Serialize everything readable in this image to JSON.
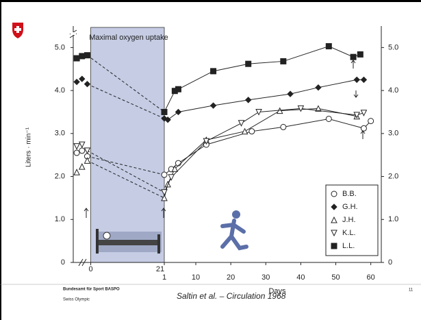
{
  "chart_data": {
    "type": "line",
    "shaded_label": "Maximal oxygen uptake",
    "ylabel": "Liters · min⁻¹",
    "xlabel": "Days",
    "ylim": [
      0,
      5.5
    ],
    "yticks": [
      0,
      {
        "value": 1,
        "label": "1.0"
      },
      {
        "value": 2,
        "label": "2.0"
      },
      {
        "value": 3,
        "label": "3.0"
      },
      {
        "value": 4,
        "label": "4.0"
      },
      {
        "value": 5,
        "label": "5.0"
      }
    ],
    "bedrest": {
      "xlim": [
        -5,
        21
      ],
      "xticks": [
        0,
        21
      ]
    },
    "recovery": {
      "xlim": [
        1,
        63
      ],
      "xticks": [
        1,
        10,
        20,
        30,
        40,
        50,
        60
      ]
    },
    "legend": "lower-right",
    "series": [
      {
        "name": "B.B.",
        "marker": "circle",
        "color": "#222",
        "control_x": [
          -4,
          -2.5,
          -1
        ],
        "control_values": [
          2.55,
          2.6,
          2.47
        ],
        "recovery_x": [
          1,
          3,
          5,
          13,
          26,
          35,
          48,
          58,
          60
        ],
        "recovery_values": [
          2.04,
          2.17,
          2.31,
          2.74,
          3.05,
          3.15,
          3.34,
          3.12,
          3.29
        ]
      },
      {
        "name": "G.H.",
        "marker": "diamond",
        "color": "#222",
        "control_x": [
          -4,
          -2.5,
          -1
        ],
        "control_values": [
          4.2,
          4.27,
          4.15
        ],
        "recovery_x": [
          1,
          2,
          5,
          15,
          25,
          37,
          45,
          56,
          58
        ],
        "recovery_values": [
          3.35,
          3.32,
          3.5,
          3.65,
          3.78,
          3.92,
          4.07,
          4.25,
          4.25
        ]
      },
      {
        "name": "J.H.",
        "marker": "triangle-up",
        "color": "#222",
        "control_x": [
          -4,
          -2.5,
          -1
        ],
        "control_values": [
          2.1,
          2.23,
          2.37
        ],
        "recovery_x": [
          1,
          2,
          4,
          13,
          24,
          34,
          45,
          56
        ],
        "recovery_values": [
          1.5,
          1.82,
          2.18,
          2.85,
          3.05,
          3.53,
          3.58,
          3.4
        ]
      },
      {
        "name": "K.L.",
        "marker": "triangle-down",
        "color": "#222",
        "control_x": [
          -4,
          -2.5,
          -1
        ],
        "control_values": [
          2.7,
          2.74,
          2.6
        ],
        "recovery_x": [
          1,
          3,
          13,
          23,
          28,
          40,
          56,
          58
        ],
        "recovery_values": [
          1.63,
          1.98,
          2.82,
          3.24,
          3.5,
          3.58,
          3.43,
          3.48
        ]
      },
      {
        "name": "L.L.",
        "marker": "square",
        "color": "#222",
        "control_x": [
          -4,
          -2.5,
          -1
        ],
        "control_values": [
          4.75,
          4.8,
          4.82
        ],
        "recovery_x": [
          1,
          4,
          5,
          15,
          25,
          35,
          48,
          55,
          57
        ],
        "recovery_values": [
          3.5,
          3.99,
          4.03,
          4.45,
          4.62,
          4.68,
          5.03,
          4.78,
          4.84
        ]
      }
    ]
  },
  "footer": {
    "org": "Bundesamt für Sport BASPO",
    "partner": "Swiss Olympic",
    "citation": "Saltin et al. – Circulation 1968",
    "page": "11"
  }
}
